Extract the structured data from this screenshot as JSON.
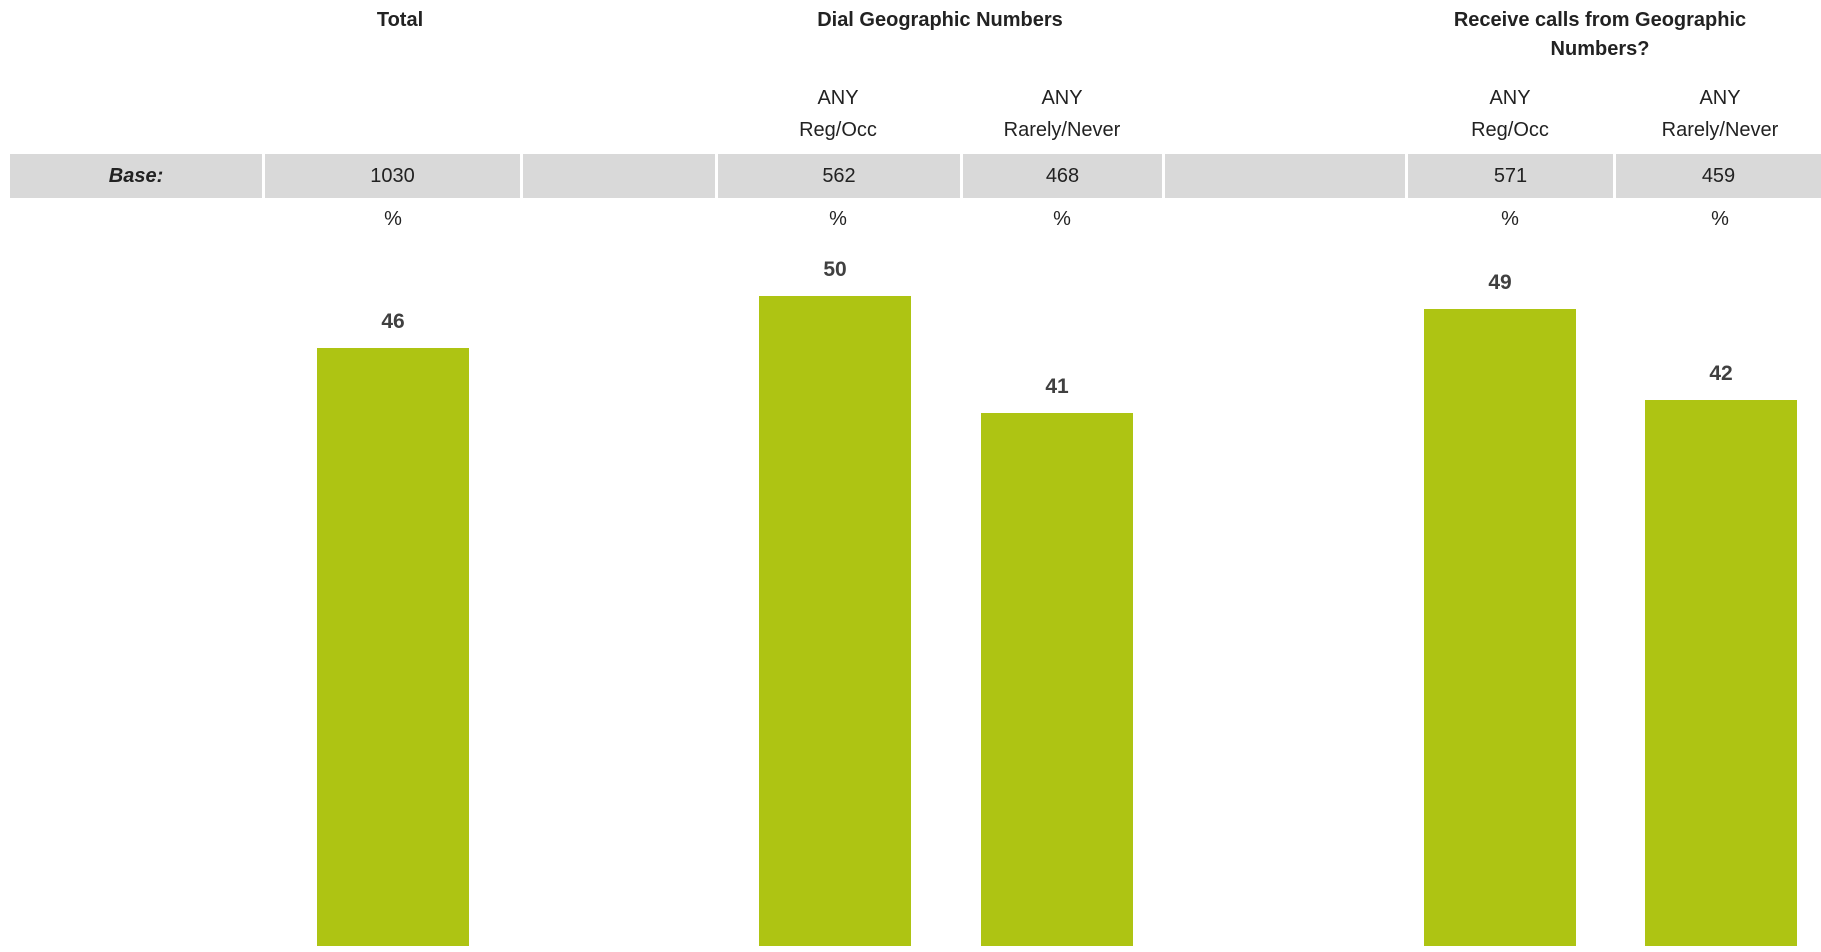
{
  "chart_data": {
    "type": "bar",
    "groups": [
      {
        "title": "Total",
        "columns": [
          0
        ]
      },
      {
        "title": "Dial Geographic Numbers",
        "columns": [
          1,
          2
        ]
      },
      {
        "title": "Receive calls from Geographic Numbers?",
        "columns": [
          3,
          4
        ]
      }
    ],
    "categories": [
      "Total",
      "ANY Reg/Occ",
      "ANY Rarely/Never",
      "ANY Reg/Occ",
      "ANY Rarely/Never"
    ],
    "sub_labels": [
      [
        "",
        ""
      ],
      [
        "ANY",
        "Reg/Occ"
      ],
      [
        "ANY",
        "Rarely/Never"
      ],
      [
        "ANY",
        "Reg/Occ"
      ],
      [
        "ANY",
        "Rarely/Never"
      ]
    ],
    "base_label": "Base:",
    "bases": [
      "1030",
      "562",
      "468",
      "571",
      "459"
    ],
    "unit_labels": [
      "%",
      "%",
      "%",
      "%",
      "%"
    ],
    "values": [
      46,
      50,
      41,
      49,
      42
    ],
    "bar_color": "#aec413",
    "label_color": "#404040",
    "ylim": [
      0,
      50
    ]
  }
}
